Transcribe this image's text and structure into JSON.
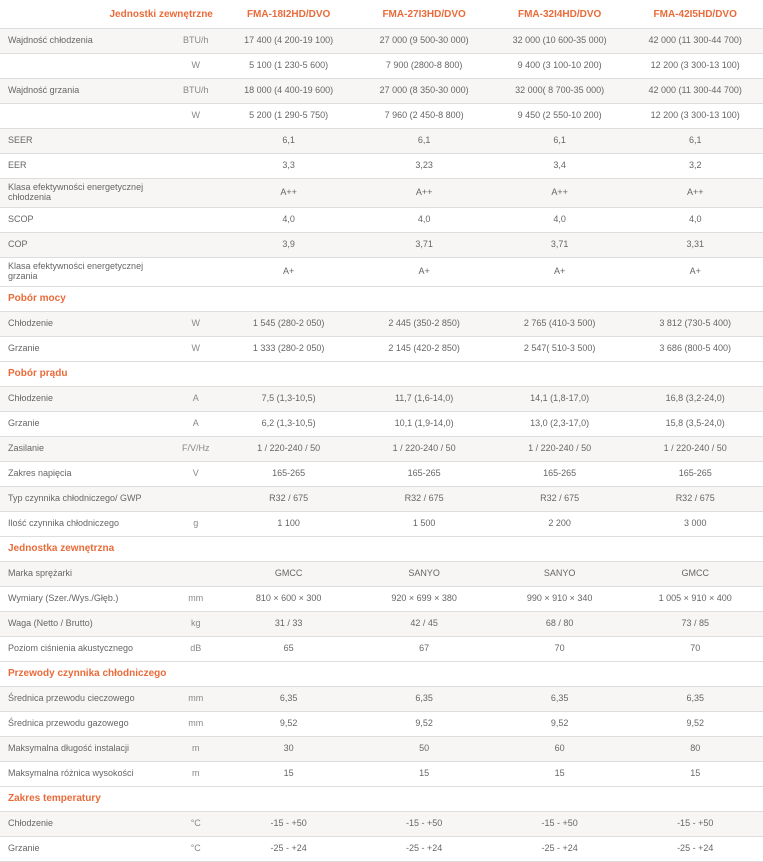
{
  "header": {
    "corner": "Jednostki zewnętrzne",
    "models": [
      "FMA-18I2HD/DVO",
      "FMA-27I3HD/DVO",
      "FMA-32I4HD/DVO",
      "FMA-42I5HD/DVO"
    ]
  },
  "rows": [
    {
      "t": "row",
      "bg": "even",
      "label": "Wajdność chłodzenia",
      "unit": "BTU/h",
      "v": [
        "17 400 (4 200-19 100)",
        "27 000 (9 500-30 000)",
        "32 000 (10 600-35 000)",
        "42 000 (11 300-44 700)"
      ]
    },
    {
      "t": "row",
      "bg": "odd",
      "label": "",
      "unit": "W",
      "v": [
        "5 100 (1 230-5 600)",
        "7 900 (2800-8 800)",
        "9 400 (3 100-10 200)",
        "12 200 (3 300-13 100)"
      ]
    },
    {
      "t": "row",
      "bg": "even",
      "label": "Wajdność grzania",
      "unit": "BTU/h",
      "v": [
        "18 000 (4 400-19 600)",
        "27 000 (8 350-30 000)",
        "32 000( 8 700-35 000)",
        "42 000 (11 300-44 700)"
      ]
    },
    {
      "t": "row",
      "bg": "odd",
      "label": "",
      "unit": "W",
      "v": [
        "5 200 (1 290-5 750)",
        "7 960 (2 450-8 800)",
        "9 450 (2 550-10 200)",
        "12 200 (3 300-13 100)"
      ]
    },
    {
      "t": "row",
      "bg": "even",
      "label": "SEER",
      "unit": "",
      "v": [
        "6,1",
        "6,1",
        "6,1",
        "6,1"
      ]
    },
    {
      "t": "row",
      "bg": "odd",
      "label": "EER",
      "unit": "",
      "v": [
        "3,3",
        "3,23",
        "3,4",
        "3,2"
      ]
    },
    {
      "t": "row",
      "bg": "even",
      "label": "Klasa efektywności energetycznej chłodzenia",
      "unit": "",
      "v": [
        "A++",
        "A++",
        "A++",
        "A++"
      ]
    },
    {
      "t": "row",
      "bg": "odd",
      "label": "SCOP",
      "unit": "",
      "v": [
        "4,0",
        "4,0",
        "4,0",
        "4,0"
      ]
    },
    {
      "t": "row",
      "bg": "even",
      "label": "COP",
      "unit": "",
      "v": [
        "3,9",
        "3,71",
        "3,71",
        "3,31"
      ]
    },
    {
      "t": "row",
      "bg": "odd",
      "label": "Klasa efektywności energetycznej grzania",
      "unit": "",
      "v": [
        "A+",
        "A+",
        "A+",
        "A+"
      ]
    },
    {
      "t": "section",
      "label": "Pobór mocy"
    },
    {
      "t": "row",
      "bg": "even",
      "label": "Chłodzenie",
      "unit": "W",
      "v": [
        "1 545 (280-2 050)",
        "2 445 (350-2 850)",
        "2 765 (410-3 500)",
        "3 812 (730-5 400)"
      ]
    },
    {
      "t": "row",
      "bg": "odd",
      "label": "Grzanie",
      "unit": "W",
      "v": [
        "1 333 (280-2 050)",
        "2 145 (420-2 850)",
        "2 547( 510-3 500)",
        "3 686 (800-5 400)"
      ]
    },
    {
      "t": "section",
      "label": "Pobór prądu"
    },
    {
      "t": "row",
      "bg": "even",
      "label": "Chłodzenie",
      "unit": "A",
      "v": [
        "7,5 (1,3-10,5)",
        "11,7 (1,6-14,0)",
        "14,1 (1,8-17,0)",
        "16,8 (3,2-24,0)"
      ]
    },
    {
      "t": "row",
      "bg": "odd",
      "label": "Grzanie",
      "unit": "A",
      "v": [
        "6,2 (1,3-10,5)",
        "10,1 (1,9-14,0)",
        "13,0 (2,3-17,0)",
        "15,8 (3,5-24,0)"
      ]
    },
    {
      "t": "row",
      "bg": "even",
      "label": "Zasilanie",
      "unit": "F/V/Hz",
      "v": [
        "1 / 220-240 / 50",
        "1 / 220-240 / 50",
        "1 / 220-240 / 50",
        "1 / 220-240 / 50"
      ]
    },
    {
      "t": "row",
      "bg": "odd",
      "label": "Zakres napięcia",
      "unit": "V",
      "v": [
        "165-265",
        "165-265",
        "165-265",
        "165-265"
      ]
    },
    {
      "t": "row",
      "bg": "even",
      "label": "Typ czynnika chłodniczego/ GWP",
      "unit": "",
      "v": [
        "R32 / 675",
        "R32 / 675",
        "R32 / 675",
        "R32 / 675"
      ]
    },
    {
      "t": "row",
      "bg": "odd",
      "label": "Ilość czynnika chłodniczego",
      "unit": "g",
      "v": [
        "1 100",
        "1 500",
        "2 200",
        "3 000"
      ]
    },
    {
      "t": "section",
      "label": "Jednostka zewnętrzna"
    },
    {
      "t": "row",
      "bg": "even",
      "label": "Marka sprężarki",
      "unit": "",
      "v": [
        "GMCC",
        "SANYO",
        "SANYO",
        "GMCC"
      ]
    },
    {
      "t": "row",
      "bg": "odd",
      "label": "Wymiary (Szer./Wys./Głęb.)",
      "unit": "mm",
      "v": [
        "810 × 600 × 300",
        "920 × 699 × 380",
        "990 × 910 × 340",
        "1 005 × 910 × 400"
      ]
    },
    {
      "t": "row",
      "bg": "even",
      "label": "Waga (Netto / Brutto)",
      "unit": "kg",
      "v": [
        "31 / 33",
        "42 / 45",
        "68 / 80",
        "73 / 85"
      ]
    },
    {
      "t": "row",
      "bg": "odd",
      "label": "Poziom ciśnienia akustycznego",
      "unit": "dB",
      "v": [
        "65",
        "67",
        "70",
        "70"
      ]
    },
    {
      "t": "section",
      "label": "Przewody czynnika chłodniczego"
    },
    {
      "t": "row",
      "bg": "even",
      "label": "Średnica przewodu cieczowego",
      "unit": "mm",
      "v": [
        "6,35",
        "6,35",
        "6,35",
        "6,35"
      ]
    },
    {
      "t": "row",
      "bg": "odd",
      "label": "Średnica przewodu gazowego",
      "unit": "mm",
      "v": [
        "9,52",
        "9,52",
        "9,52",
        "9,52"
      ]
    },
    {
      "t": "row",
      "bg": "even",
      "label": "Maksymalna długość instalacji",
      "unit": "m",
      "v": [
        "30",
        "50",
        "60",
        "80"
      ]
    },
    {
      "t": "row",
      "bg": "odd",
      "label": "Maksymalna różnica wysokości",
      "unit": "m",
      "v": [
        "15",
        "15",
        "15",
        "15"
      ]
    },
    {
      "t": "section",
      "label": "Zakres temperatury"
    },
    {
      "t": "row",
      "bg": "even",
      "label": "Chłodzenie",
      "unit": "°C",
      "v": [
        "-15 - +50",
        "-15 - +50",
        "-15 - +50",
        "-15 - +50"
      ]
    },
    {
      "t": "row",
      "bg": "odd",
      "label": "Grzanie",
      "unit": "°C",
      "v": [
        "-25 - +24",
        "-25 - +24",
        "-25 - +24",
        "-25 - +24"
      ]
    }
  ],
  "colors": {
    "accent": "#e96b3a",
    "text": "#666666",
    "border": "#dddddd",
    "evenRow": "#f7f6f4",
    "oddRow": "#ffffff"
  }
}
